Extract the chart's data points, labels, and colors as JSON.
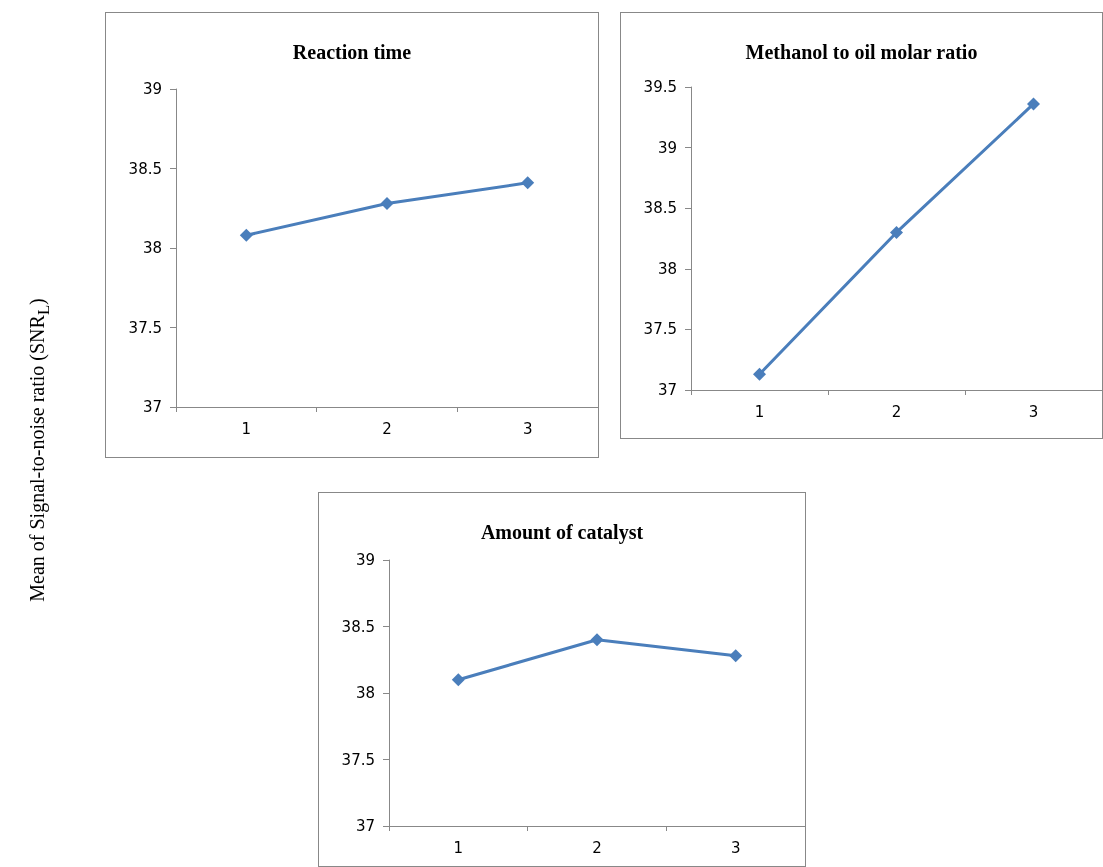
{
  "chart_data": [
    {
      "type": "line",
      "title": "Reaction time",
      "ylabel": "Mean of Signal-to-noise ratio (SNR$_{L}$)",
      "categories": [
        "1",
        "2",
        "3"
      ],
      "values": [
        38.08,
        38.28,
        38.41
      ],
      "color": "#4a7ebb",
      "ylim": [
        37,
        39
      ],
      "yticks": [
        37,
        37.5,
        38,
        38.5,
        39
      ],
      "marker": "diamond",
      "grid": false
    },
    {
      "type": "line",
      "title": "Methanol to oil molar ratio",
      "categories": [
        "1",
        "2",
        "3"
      ],
      "values": [
        37.13,
        38.3,
        39.36
      ],
      "color": "#4a7ebb",
      "ylim": [
        37,
        39.5
      ],
      "yticks": [
        37,
        37.5,
        38,
        38.5,
        39,
        39.5
      ],
      "marker": "diamond",
      "grid": false
    },
    {
      "type": "line",
      "title": "Amount of catalyst",
      "categories": [
        "1",
        "2",
        "3"
      ],
      "values": [
        38.1,
        38.4,
        38.28
      ],
      "color": "#4a7ebb",
      "ylim": [
        37,
        39
      ],
      "yticks": [
        37,
        37.5,
        38,
        38.5,
        39
      ],
      "marker": "diamond",
      "grid": false
    }
  ]
}
